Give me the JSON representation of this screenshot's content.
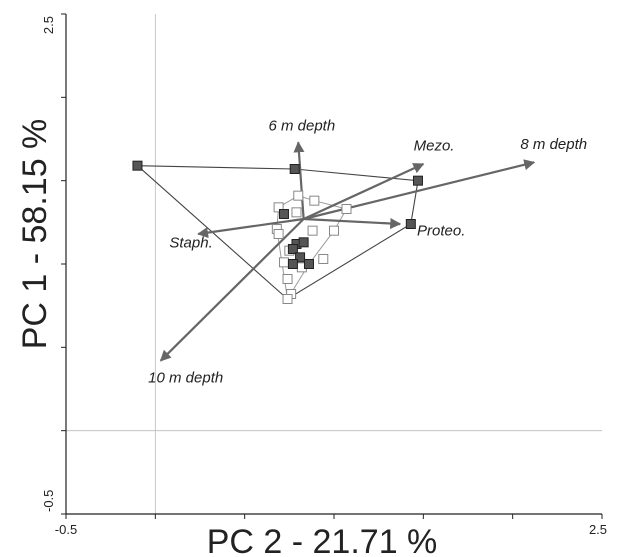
{
  "chart_data": {
    "type": "scatter",
    "xlabel": "PC 2 - 21.71 %",
    "ylabel": "PC 1 - 58.15 %",
    "xlim": [
      -0.5,
      2.5
    ],
    "ylim": [
      -0.5,
      2.5
    ],
    "x_tick_labels": [
      "-0.5",
      "2.5"
    ],
    "y_tick_labels": [
      "-0.5",
      "2.5"
    ],
    "grid": false,
    "zero_reference_lines": true,
    "colors": {
      "axes": "#222222",
      "reference_lines": "#bbbbbb",
      "polygon_lines": "#777777",
      "vectors": "#666666",
      "filled_marker": "#555555",
      "open_marker": "#888888"
    },
    "filled_points": [
      [
        -0.1,
        1.59
      ],
      [
        0.78,
        1.57
      ],
      [
        1.47,
        1.5
      ],
      [
        0.72,
        1.3
      ],
      [
        1.43,
        1.24
      ],
      [
        0.79,
        1.12
      ],
      [
        0.83,
        1.13
      ],
      [
        0.77,
        1.09
      ],
      [
        0.81,
        1.04
      ],
      [
        0.77,
        1.0
      ],
      [
        0.86,
        1.0
      ]
    ],
    "open_points": [
      [
        0.8,
        1.41
      ],
      [
        0.69,
        1.34
      ],
      [
        0.79,
        1.31
      ],
      [
        0.89,
        1.38
      ],
      [
        1.07,
        1.33
      ],
      [
        0.68,
        1.21
      ],
      [
        0.69,
        1.18
      ],
      [
        0.88,
        1.2
      ],
      [
        1.0,
        1.2
      ],
      [
        0.75,
        1.08
      ],
      [
        0.94,
        1.03
      ],
      [
        0.82,
        0.98
      ],
      [
        0.72,
        1.01
      ],
      [
        0.74,
        0.91
      ],
      [
        0.76,
        0.82
      ],
      [
        0.74,
        0.79
      ]
    ],
    "outer_polygon": [
      [
        -0.1,
        1.59
      ],
      [
        0.78,
        1.57
      ],
      [
        1.47,
        1.5
      ],
      [
        1.43,
        1.24
      ],
      [
        0.74,
        0.79
      ],
      [
        -0.1,
        1.59
      ]
    ],
    "inner_polygon": [
      [
        0.69,
        1.34
      ],
      [
        0.8,
        1.41
      ],
      [
        0.89,
        1.38
      ],
      [
        1.07,
        1.33
      ],
      [
        1.0,
        1.2
      ],
      [
        0.86,
        1.0
      ],
      [
        0.74,
        0.79
      ],
      [
        0.68,
        1.21
      ],
      [
        0.69,
        1.34
      ]
    ],
    "vector_origin": [
      0.83,
      1.27
    ],
    "vectors": [
      {
        "label": "6 m depth",
        "end": [
          0.8,
          1.73
        ],
        "label_at": [
          0.82,
          1.8
        ]
      },
      {
        "label": "Mezo.",
        "end": [
          1.5,
          1.6
        ],
        "label_at": [
          1.56,
          1.68
        ]
      },
      {
        "label": "8 m depth",
        "end": [
          2.12,
          1.61
        ],
        "label_at": [
          2.23,
          1.69
        ]
      },
      {
        "label": "Proteo.",
        "end": [
          1.37,
          1.24
        ],
        "label_at": [
          1.6,
          1.17
        ]
      },
      {
        "label": "Staph.",
        "end": [
          0.24,
          1.18
        ],
        "label_at": [
          0.2,
          1.1
        ]
      },
      {
        "label": "10 m depth",
        "end": [
          0.03,
          0.42
        ],
        "label_at": [
          0.17,
          0.29
        ]
      }
    ]
  }
}
